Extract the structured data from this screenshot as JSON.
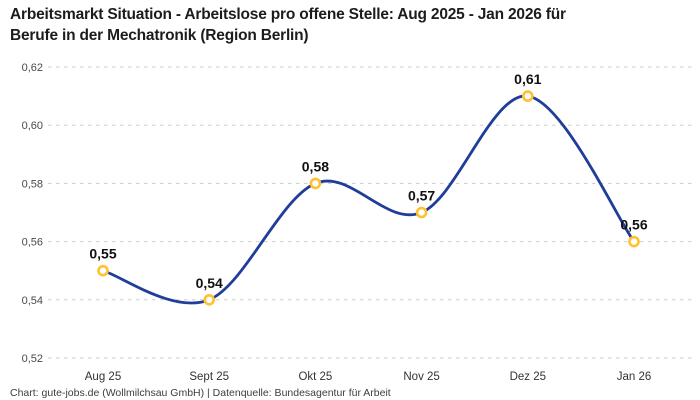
{
  "header": {
    "title_line1": "Arbeitsmarkt Situation - Arbeitslose pro offene Stelle: Aug 2025 - Jan 2026 für",
    "title_line2": "Berufe in der Mechatronik (Region Berlin)"
  },
  "footer": {
    "attribution": "Chart: gute-jobs.de (Wollmilchsau GmbH) | Datenquelle: Bundesagentur für Arbeit"
  },
  "chart_data": {
    "type": "line",
    "title": "Arbeitsmarkt Situation - Arbeitslose pro offene Stelle: Aug 2025 - Jan 2026 für Berufe in der Mechatronik (Region Berlin)",
    "categories": [
      "Aug 25",
      "Sept 25",
      "Okt 25",
      "Nov 25",
      "Dez 25",
      "Jan 26"
    ],
    "values": [
      0.55,
      0.54,
      0.58,
      0.57,
      0.61,
      0.56
    ],
    "point_labels": [
      "0,55",
      "0,54",
      "0,58",
      "0,57",
      "0,61",
      "0,56"
    ],
    "xlabel": "",
    "ylabel": "",
    "ylim": [
      0.52,
      0.62
    ],
    "y_tick_values": [
      0.62,
      0.6,
      0.58,
      0.56,
      0.54,
      0.52
    ],
    "y_tick_labels": [
      "0,62",
      "0,60",
      "0,58",
      "0,56",
      "0,54",
      "0,52"
    ],
    "grid": "horizontal-dashed",
    "legend": "none",
    "smooth_curve": true,
    "colors": {
      "line": "#1f3d99",
      "marker_ring": "#ffc12e",
      "marker_fill": "#ffffff",
      "gridline": "#cdcdcd",
      "point_label": "#111111",
      "tick_label": "#494949",
      "x_tick_label": "#333333"
    }
  }
}
